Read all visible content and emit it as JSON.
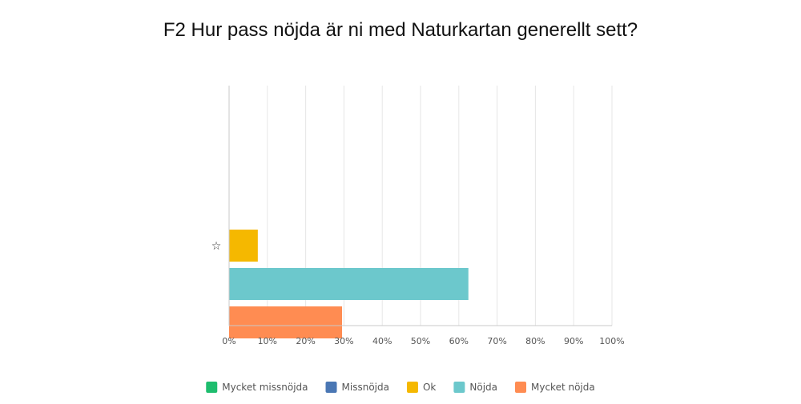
{
  "chart_data": {
    "type": "bar",
    "orientation": "horizontal",
    "title": "F2 Hur pass nöjda är ni med Naturkartan generellt sett?",
    "xlabel": "",
    "ylabel": "",
    "xlim": [
      0,
      100
    ],
    "x_ticks": [
      "0%",
      "10%",
      "20%",
      "30%",
      "40%",
      "50%",
      "60%",
      "70%",
      "80%",
      "90%",
      "100%"
    ],
    "grid": true,
    "legend_position": "bottom",
    "category_marker": "star-icon",
    "series": [
      {
        "name": "Mycket missnöjda",
        "value": 0,
        "color": "#1ebd6e"
      },
      {
        "name": "Missnöjda",
        "value": 0,
        "color": "#4a77b4"
      },
      {
        "name": "Ok",
        "value": 7.5,
        "color": "#f5b800"
      },
      {
        "name": "Nöjda",
        "value": 62.5,
        "color": "#6cc8cc"
      },
      {
        "name": "Mycket nöjda",
        "value": 29.5,
        "color": "#ff8c52"
      }
    ]
  }
}
